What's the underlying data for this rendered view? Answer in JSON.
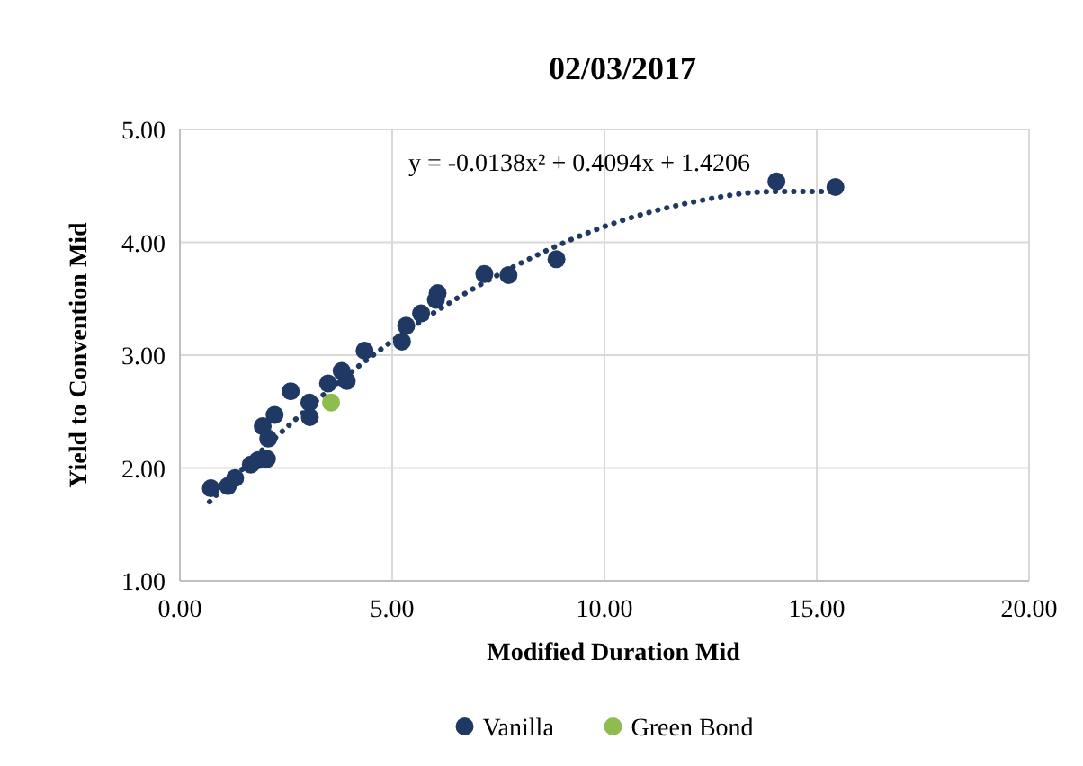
{
  "chart_data": {
    "type": "scatter",
    "title": "02/03/2017",
    "xlabel": "Modified Duration Mid",
    "ylabel": "Yield to Convention Mid",
    "xlim": [
      0,
      20
    ],
    "xticks": [
      {
        "value": 0,
        "label": "0.00"
      },
      {
        "value": 5,
        "label": "5.00"
      },
      {
        "value": 10,
        "label": "10.00"
      },
      {
        "value": 15,
        "label": "15.00"
      },
      {
        "value": 20,
        "label": "20.00"
      }
    ],
    "ylim": [
      1,
      5
    ],
    "yticks": [
      {
        "value": 1,
        "label": "1.00"
      },
      {
        "value": 2,
        "label": "2.00"
      },
      {
        "value": 3,
        "label": "3.00"
      },
      {
        "value": 4,
        "label": "4.00"
      },
      {
        "value": 5,
        "label": "5.00"
      }
    ],
    "grid": true,
    "legend": "bottom",
    "marker": "circle",
    "annotations": [
      "y = -0.0138x² + 0.4094x + 1.4206"
    ],
    "series": [
      {
        "type": "line",
        "color": "#203864",
        "line_style": "dotted",
        "marker": "none",
        "x": [
          0.7,
          2,
          4,
          6,
          8,
          10,
          12,
          14,
          15.4
        ],
        "values": [
          1.7,
          2.18,
          2.84,
          3.38,
          3.81,
          4.14,
          4.35,
          4.45,
          4.45
        ]
      },
      {
        "name": "Vanilla",
        "color": "#203864",
        "x": [
          0.73,
          1.13,
          1.3,
          1.67,
          1.84,
          2.05,
          1.95,
          2.08,
          2.23,
          2.61,
          3.05,
          3.06,
          3.49,
          3.81,
          3.93,
          4.35,
          5.23,
          5.33,
          5.68,
          6.07,
          6.03,
          7.17,
          7.74,
          8.87,
          14.05,
          15.44
        ],
        "values": [
          1.82,
          1.84,
          1.91,
          2.03,
          2.07,
          2.08,
          2.37,
          2.26,
          2.47,
          2.68,
          2.58,
          2.45,
          2.75,
          2.86,
          2.77,
          3.04,
          3.12,
          3.26,
          3.37,
          3.55,
          3.49,
          3.72,
          3.71,
          3.85,
          4.54,
          4.49
        ]
      },
      {
        "name": "Green Bond",
        "color": "#8fbc4f",
        "x": [
          3.56
        ],
        "values": [
          2.58
        ]
      }
    ]
  }
}
